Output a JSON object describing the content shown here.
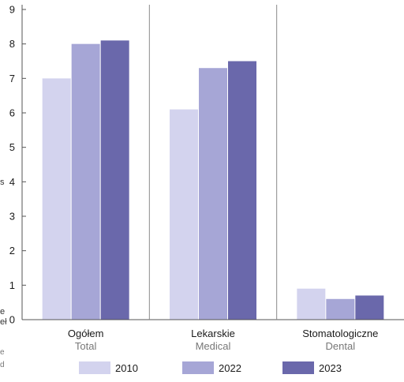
{
  "chart_data": {
    "type": "bar",
    "categories": [
      {
        "label": "Ogółem",
        "sublabel": "Total"
      },
      {
        "label": "Lekarskie",
        "sublabel": "Medical"
      },
      {
        "label": "Stomatologiczne",
        "sublabel": "Dental"
      }
    ],
    "series": [
      {
        "name": "2010",
        "color": "#d3d3ee",
        "values": [
          7.0,
          6.1,
          0.9
        ]
      },
      {
        "name": "2022",
        "color": "#a6a6d6",
        "values": [
          8.0,
          7.3,
          0.6
        ]
      },
      {
        "name": "2023",
        "color": "#6a68ab",
        "values": [
          8.1,
          7.5,
          0.7
        ]
      }
    ],
    "ylim": [
      0,
      9
    ],
    "yticks": [
      "0",
      "1",
      "2",
      "3",
      "4",
      "5",
      "6",
      "7",
      "8",
      "9"
    ],
    "grid": false,
    "legend_position": "bottom",
    "colors": {
      "axis": "#555555",
      "text": "#1a1a1a",
      "subtext": "#777777"
    }
  },
  "edge_fragments": {
    "frag_s": "s",
    "frag_e": "e",
    "frag_el": "eł",
    "frag_e2": "e",
    "frag_d": "d"
  }
}
